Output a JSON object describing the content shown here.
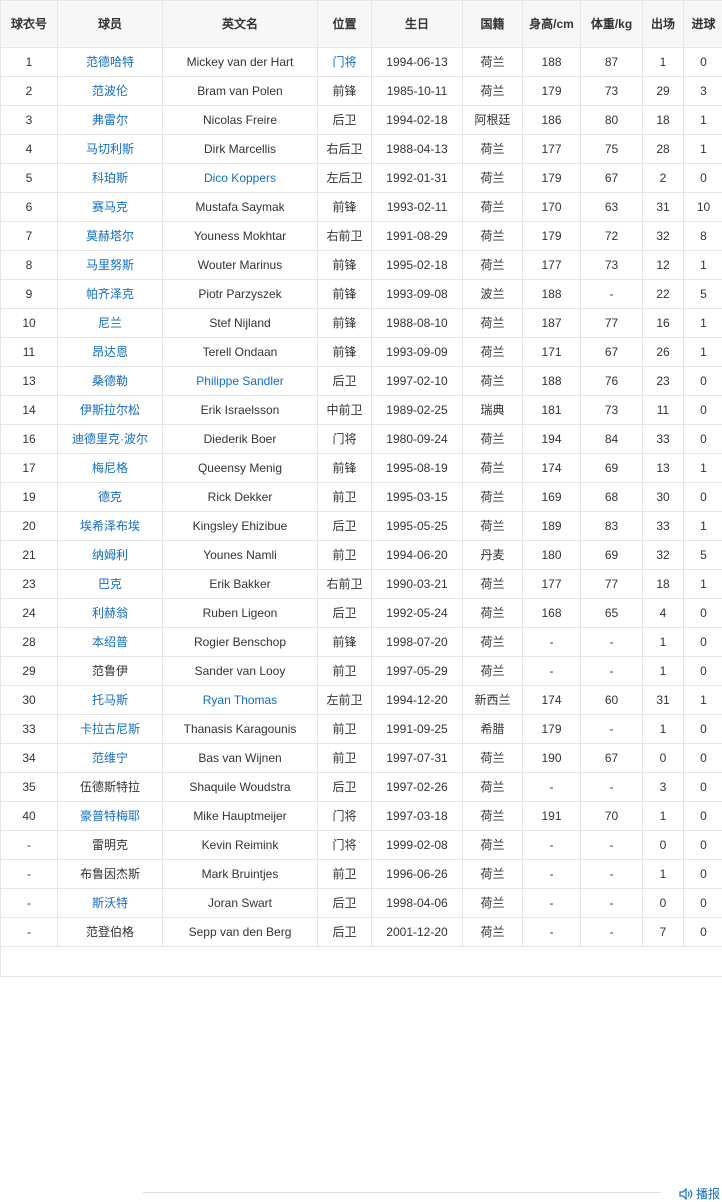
{
  "headers": [
    "球衣号",
    "球员",
    "英文名",
    "位置",
    "生日",
    "国籍",
    "身高/cm",
    "体重/kg",
    "出场",
    "进球"
  ],
  "link_color": "#136ec2",
  "rows": [
    {
      "no": "1",
      "cn": "范德哈特",
      "en": "Mickey van der Hart",
      "pos": "门将",
      "birth": "1994-06-13",
      "nat": "荷兰",
      "h": "188",
      "w": "87",
      "apps": "1",
      "goals": "0",
      "cn_link": true,
      "en_link": false,
      "pos_link": true
    },
    {
      "no": "2",
      "cn": "范波伦",
      "en": "Bram van Polen",
      "pos": "前锋",
      "birth": "1985-10-11",
      "nat": "荷兰",
      "h": "179",
      "w": "73",
      "apps": "29",
      "goals": "3",
      "cn_link": true
    },
    {
      "no": "3",
      "cn": "弗雷尔",
      "en": "Nicolas Freire",
      "pos": "后卫",
      "birth": "1994-02-18",
      "nat": "阿根廷",
      "h": "186",
      "w": "80",
      "apps": "18",
      "goals": "1",
      "cn_link": true
    },
    {
      "no": "4",
      "cn": "马切利斯",
      "en": "Dirk Marcellis",
      "pos": "右后卫",
      "birth": "1988-04-13",
      "nat": "荷兰",
      "h": "177",
      "w": "75",
      "apps": "28",
      "goals": "1",
      "cn_link": true
    },
    {
      "no": "5",
      "cn": "科珀斯",
      "en": "Dico Koppers",
      "pos": "左后卫",
      "birth": "1992-01-31",
      "nat": "荷兰",
      "h": "179",
      "w": "67",
      "apps": "2",
      "goals": "0",
      "cn_link": true,
      "en_link": true
    },
    {
      "no": "6",
      "cn": "赛马克",
      "en": "Mustafa Saymak",
      "pos": "前锋",
      "birth": "1993-02-11",
      "nat": "荷兰",
      "h": "170",
      "w": "63",
      "apps": "31",
      "goals": "10",
      "cn_link": true
    },
    {
      "no": "7",
      "cn": "莫赫塔尔",
      "en": "Youness Mokhtar",
      "pos": "右前卫",
      "birth": "1991-08-29",
      "nat": "荷兰",
      "h": "179",
      "w": "72",
      "apps": "32",
      "goals": "8",
      "cn_link": true
    },
    {
      "no": "8",
      "cn": "马里努斯",
      "en": "Wouter Marinus",
      "pos": "前锋",
      "birth": "1995-02-18",
      "nat": "荷兰",
      "h": "177",
      "w": "73",
      "apps": "12",
      "goals": "1",
      "cn_link": true
    },
    {
      "no": "9",
      "cn": "帕齐泽克",
      "en": "Piotr Parzyszek",
      "pos": "前锋",
      "birth": "1993-09-08",
      "nat": "波兰",
      "h": "188",
      "w": "-",
      "apps": "22",
      "goals": "5",
      "cn_link": true
    },
    {
      "no": "10",
      "cn": "尼兰",
      "en": "Stef Nijland",
      "pos": "前锋",
      "birth": "1988-08-10",
      "nat": "荷兰",
      "h": "187",
      "w": "77",
      "apps": "16",
      "goals": "1",
      "cn_link": true
    },
    {
      "no": "11",
      "cn": "昂达恩",
      "en": "Terell Ondaan",
      "pos": "前锋",
      "birth": "1993-09-09",
      "nat": "荷兰",
      "h": "171",
      "w": "67",
      "apps": "26",
      "goals": "1",
      "cn_link": true
    },
    {
      "no": "13",
      "cn": "桑德勒",
      "en": "Philippe Sandler",
      "pos": "后卫",
      "birth": "1997-02-10",
      "nat": "荷兰",
      "h": "188",
      "w": "76",
      "apps": "23",
      "goals": "0",
      "cn_link": true,
      "en_link": true
    },
    {
      "no": "14",
      "cn": "伊斯拉尔松",
      "en": "Erik Israelsson",
      "pos": "中前卫",
      "birth": "1989-02-25",
      "nat": "瑞典",
      "h": "181",
      "w": "73",
      "apps": "11",
      "goals": "0",
      "cn_link": true
    },
    {
      "no": "16",
      "cn": "迪德里克·波尔",
      "en": "Diederik Boer",
      "pos": "门将",
      "birth": "1980-09-24",
      "nat": "荷兰",
      "h": "194",
      "w": "84",
      "apps": "33",
      "goals": "0",
      "cn_link": true
    },
    {
      "no": "17",
      "cn": "梅尼格",
      "en": "Queensy Menig",
      "pos": "前锋",
      "birth": "1995-08-19",
      "nat": "荷兰",
      "h": "174",
      "w": "69",
      "apps": "13",
      "goals": "1",
      "cn_link": true
    },
    {
      "no": "19",
      "cn": "德克",
      "en": "Rick Dekker",
      "pos": "前卫",
      "birth": "1995-03-15",
      "nat": "荷兰",
      "h": "169",
      "w": "68",
      "apps": "30",
      "goals": "0",
      "cn_link": true
    },
    {
      "no": "20",
      "cn": "埃希泽布埃",
      "en": "Kingsley Ehizibue",
      "pos": "后卫",
      "birth": "1995-05-25",
      "nat": "荷兰",
      "h": "189",
      "w": "83",
      "apps": "33",
      "goals": "1",
      "cn_link": true
    },
    {
      "no": "21",
      "cn": "纳姆利",
      "en": "Younes Namli",
      "pos": "前卫",
      "birth": "1994-06-20",
      "nat": "丹麦",
      "h": "180",
      "w": "69",
      "apps": "32",
      "goals": "5",
      "cn_link": true
    },
    {
      "no": "23",
      "cn": "巴克",
      "en": "Erik Bakker",
      "pos": "右前卫",
      "birth": "1990-03-21",
      "nat": "荷兰",
      "h": "177",
      "w": "77",
      "apps": "18",
      "goals": "1",
      "cn_link": true
    },
    {
      "no": "24",
      "cn": "利赫翁",
      "en": "Ruben Ligeon",
      "pos": "后卫",
      "birth": "1992-05-24",
      "nat": "荷兰",
      "h": "168",
      "w": "65",
      "apps": "4",
      "goals": "0",
      "cn_link": true
    },
    {
      "no": "28",
      "cn": "本绍普",
      "en": "Rogier Benschop",
      "pos": "前锋",
      "birth": "1998-07-20",
      "nat": "荷兰",
      "h": "-",
      "w": "-",
      "apps": "1",
      "goals": "0",
      "cn_link": true
    },
    {
      "no": "29",
      "cn": "范鲁伊",
      "en": "Sander van Looy",
      "pos": "前卫",
      "birth": "1997-05-29",
      "nat": "荷兰",
      "h": "-",
      "w": "-",
      "apps": "1",
      "goals": "0"
    },
    {
      "no": "30",
      "cn": "托马斯",
      "en": "Ryan Thomas",
      "pos": "左前卫",
      "birth": "1994-12-20",
      "nat": "新西兰",
      "h": "174",
      "w": "60",
      "apps": "31",
      "goals": "1",
      "cn_link": true,
      "en_link": true
    },
    {
      "no": "33",
      "cn": "卡拉古尼斯",
      "en": "Thanasis Karagounis",
      "pos": "前卫",
      "birth": "1991-09-25",
      "nat": "希腊",
      "h": "179",
      "w": "-",
      "apps": "1",
      "goals": "0",
      "cn_link": true
    },
    {
      "no": "34",
      "cn": "范维宁",
      "en": "Bas van Wijnen",
      "pos": "前卫",
      "birth": "1997-07-31",
      "nat": "荷兰",
      "h": "190",
      "w": "67",
      "apps": "0",
      "goals": "0",
      "cn_link": true
    },
    {
      "no": "35",
      "cn": "伍德斯特拉",
      "en": "Shaquile Woudstra",
      "pos": "后卫",
      "birth": "1997-02-26",
      "nat": "荷兰",
      "h": "-",
      "w": "-",
      "apps": "3",
      "goals": "0"
    },
    {
      "no": "40",
      "cn": "豪普特梅耶",
      "en": "Mike Hauptmeijer",
      "pos": "门将",
      "birth": "1997-03-18",
      "nat": "荷兰",
      "h": "191",
      "w": "70",
      "apps": "1",
      "goals": "0",
      "cn_link": true
    },
    {
      "no": "-",
      "cn": "雷明克",
      "en": "Kevin Reimink",
      "pos": "门将",
      "birth": "1999-02-08",
      "nat": "荷兰",
      "h": "-",
      "w": "-",
      "apps": "0",
      "goals": "0"
    },
    {
      "no": "-",
      "cn": "布鲁因杰斯",
      "en": "Mark Bruintjes",
      "pos": "前卫",
      "birth": "1996-06-26",
      "nat": "荷兰",
      "h": "-",
      "w": "-",
      "apps": "1",
      "goals": "0"
    },
    {
      "no": "-",
      "cn": "斯沃特",
      "en": "Joran Swart",
      "pos": "后卫",
      "birth": "1998-04-06",
      "nat": "荷兰",
      "h": "-",
      "w": "-",
      "apps": "0",
      "goals": "0",
      "cn_link": true
    },
    {
      "no": "-",
      "cn": "范登伯格",
      "en": "Sepp van den Berg",
      "pos": "后卫",
      "birth": "2001-12-20",
      "nat": "荷兰",
      "h": "-",
      "w": "-",
      "apps": "7",
      "goals": "0"
    }
  ],
  "footer": {
    "report_label": "播报",
    "report_icon": "speaker-icon"
  }
}
